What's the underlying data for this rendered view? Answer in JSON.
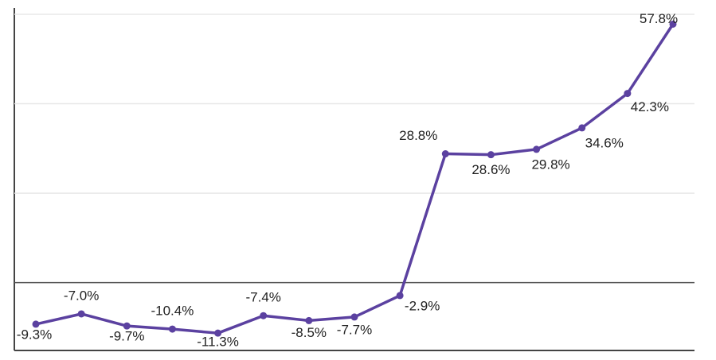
{
  "chart_data": {
    "type": "line",
    "categories": [
      null,
      null,
      null,
      null,
      null,
      null,
      null,
      null,
      null,
      null,
      null,
      null,
      null,
      null,
      null
    ],
    "values": [
      -9.3,
      -7.0,
      -9.7,
      -10.4,
      -11.3,
      -7.4,
      -8.5,
      -7.7,
      -2.9,
      28.8,
      28.6,
      29.8,
      34.6,
      42.3,
      57.8
    ],
    "value_labels": [
      "-9.3%",
      "-7.0%",
      "-9.7%",
      "-10.4%",
      "-11.3%",
      "-7.4%",
      "-8.5%",
      "-7.7%",
      "-2.9%",
      "28.8%",
      "28.6%",
      "29.8%",
      "34.6%",
      "42.3%",
      "57.8%"
    ],
    "color": "#5b41a0",
    "ylim": [
      -15,
      60
    ],
    "yticks": [
      0,
      20,
      40,
      60
    ],
    "grid": true
  }
}
